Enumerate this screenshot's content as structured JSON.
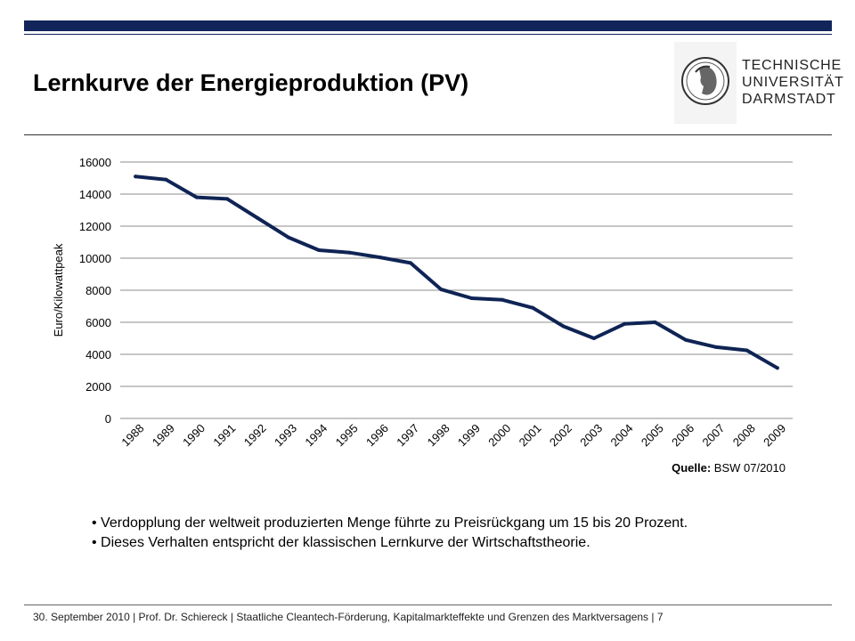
{
  "slide": {
    "title": "Lernkurve der Energieproduktion (PV)",
    "logo": {
      "lines": [
        "TECHNISCHE",
        "UNIVERSITÄT",
        "DARMSTADT"
      ]
    },
    "source_label": "Quelle:",
    "source_value": "BSW 07/2010",
    "bullets": [
      "Verdopplung der weltweit produzierten Menge führte zu Preisrückgang um 15 bis 20 Prozent.",
      "Dieses Verhalten entspricht der klassischen Lernkurve der Wirtschaftstheorie."
    ],
    "footer": "30. September 2010  |  Prof. Dr. Schiereck | Staatliche Cleantech-Förderung, Kapitalmarkteffekte und Grenzen des Marktversagens  |  7"
  },
  "colors": {
    "brand": "#12255a",
    "line": "#0f2454",
    "grid": "#8c8c8c"
  },
  "chart_data": {
    "type": "line",
    "title": "",
    "xlabel": "",
    "ylabel": "Euro/Kilowattpeak",
    "categories": [
      "1988",
      "1989",
      "1990",
      "1991",
      "1992",
      "1993",
      "1994",
      "1995",
      "1996",
      "1997",
      "1998",
      "1999",
      "2000",
      "2001",
      "2002",
      "2003",
      "2004",
      "2005",
      "2006",
      "2007",
      "2008",
      "2009"
    ],
    "series": [
      {
        "name": "Euro/Kilowattpeak",
        "values": [
          15100,
          14900,
          13800,
          13700,
          12500,
          11300,
          10500,
          10350,
          10050,
          9700,
          8050,
          7500,
          7400,
          6900,
          5750,
          5000,
          5900,
          6000,
          4900,
          4450,
          4250,
          3150
        ]
      }
    ],
    "ylim": [
      0,
      16000
    ],
    "yticks": [
      0,
      2000,
      4000,
      6000,
      8000,
      10000,
      12000,
      14000,
      16000
    ],
    "grid": true,
    "legend": "none"
  }
}
